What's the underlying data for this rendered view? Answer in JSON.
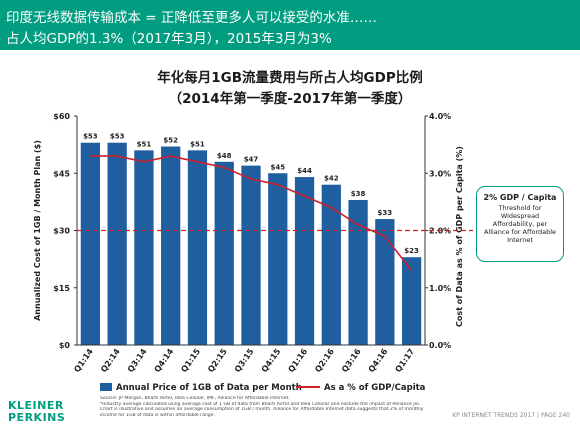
{
  "header": {
    "line1": "印度无线数据传输成本 = 正降低至更多人可以接受的水准……",
    "line2": "占人均GDP的1.3%（2017年3月），2015年3月为3%"
  },
  "chart_data": {
    "type": "bar",
    "title": "年化每月1GB流量费用与所占人均GDP比例",
    "subtitle": "（2014年第一季度-2017年第一季度）",
    "categories": [
      "Q1:14",
      "Q2:14",
      "Q3:14",
      "Q4:14",
      "Q1:15",
      "Q2:15",
      "Q3:15",
      "Q4:15",
      "Q1:16",
      "Q2:16",
      "Q3:16",
      "Q4:16",
      "Q1:17"
    ],
    "series": [
      {
        "name": "Annual Price of 1GB of Data per Month",
        "type": "bar",
        "axis": "left",
        "color": "#1f5fa0",
        "values": [
          53,
          53,
          51,
          52,
          51,
          48,
          47,
          45,
          44,
          42,
          38,
          33,
          23
        ],
        "labels": [
          "$53",
          "$53",
          "$51",
          "$52",
          "$51",
          "$48",
          "$47",
          "$45",
          "$44",
          "$42",
          "$38",
          "$33",
          "$23"
        ]
      },
      {
        "name": "As a % of GDP/Capita",
        "type": "line",
        "axis": "right",
        "color": "#d0212b",
        "values": [
          3.3,
          3.3,
          3.2,
          3.3,
          3.2,
          3.1,
          2.9,
          2.8,
          2.6,
          2.4,
          2.1,
          1.9,
          1.3
        ]
      }
    ],
    "ylabel": "Annualized Cost of 1GB / Month Plan ($)",
    "ylim": [
      0,
      60
    ],
    "yticks": [
      "$0",
      "$15",
      "$30",
      "$45",
      "$60"
    ],
    "ylabel_right": "Cost of Data as % of GDP per Capita (%)",
    "ylim_right": [
      0,
      4
    ],
    "yticks_right": [
      "0.0%",
      "1.0%",
      "2.0%",
      "3.0%",
      "4.0%"
    ],
    "reference_line": {
      "value": 2.0,
      "axis": "right",
      "style": "dashed",
      "color": "#d0212b"
    },
    "grid": false,
    "legend": "bottom"
  },
  "callout": {
    "title": "2% GDP / Capita",
    "body": "Threshold for Widespread Affordability, per Alliance for Affordable Internet"
  },
  "footnote": [
    "Source: JP Morgan, Bharti Airtel, Idea Cellular, IMF, Alliance for Affordable Internet.",
    "*Industry average calculated using average cost of 1 GB of data from Bharti Airtel and Idea Cellular and exclude the impact of Reliance Jio.",
    "Chart is illustrative and assumes an average consumption of 1GB / month. Alliance for Affordable Internet data suggests that 2% of monthly",
    "income for 1GB of data is within affordable range."
  ],
  "logo": {
    "line1": "KLEINER",
    "line2": "PERKINS"
  },
  "page_footer": "KP INTERNET TRENDS 2017  |  PAGE 240",
  "colors": {
    "brand": "#009d80",
    "bar": "#1f5fa0",
    "line": "#d0212b"
  }
}
